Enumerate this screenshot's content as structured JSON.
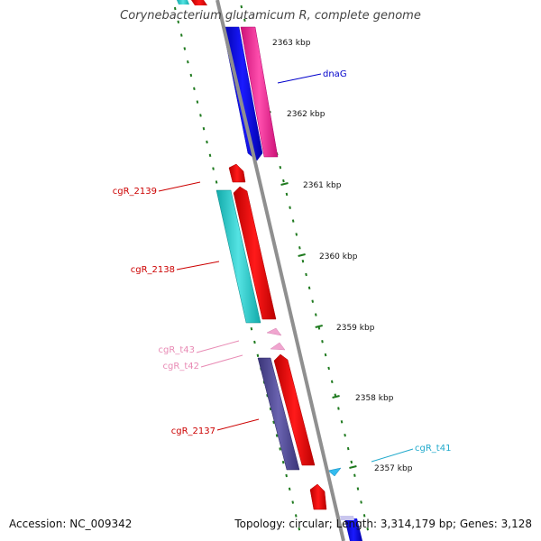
{
  "title": "Corynebacterium glutamicum R, complete genome",
  "footer": {
    "accession": "Accession: NC_009342",
    "topology": "Topology: circular; Length: 3,314,179 bp; Genes: 3,128"
  },
  "colors": {
    "backbone": "#8f8f8f",
    "tick": "#1f7a1f",
    "label_gene_fwd": "#cc0000",
    "label_gene_blue": "#0000cc",
    "label_trna": "#e88ab4",
    "label_cyan": "#22aacc"
  },
  "kbp_labels": [
    {
      "label": "2363 kbp",
      "kbp": 2363
    },
    {
      "label": "2362 kbp",
      "kbp": 2362
    },
    {
      "label": "2361 kbp",
      "kbp": 2361
    },
    {
      "label": "2360 kbp",
      "kbp": 2360
    },
    {
      "label": "2359 kbp",
      "kbp": 2359
    },
    {
      "label": "2358 kbp",
      "kbp": 2358
    },
    {
      "label": "2357 kbp",
      "kbp": 2357
    }
  ],
  "features": [
    {
      "name": "dnaG",
      "color": "#0000cc"
    },
    {
      "name": "cgR_2139",
      "color": "#cc0000"
    },
    {
      "name": "cgR_2138",
      "color": "#cc0000"
    },
    {
      "name": "cgR_t43",
      "color": "#e88ab4"
    },
    {
      "name": "cgR_t42",
      "color": "#e88ab4"
    },
    {
      "name": "cgR_2137",
      "color": "#cc0000"
    },
    {
      "name": "cgR_t41",
      "color": "#22aacc"
    }
  ]
}
